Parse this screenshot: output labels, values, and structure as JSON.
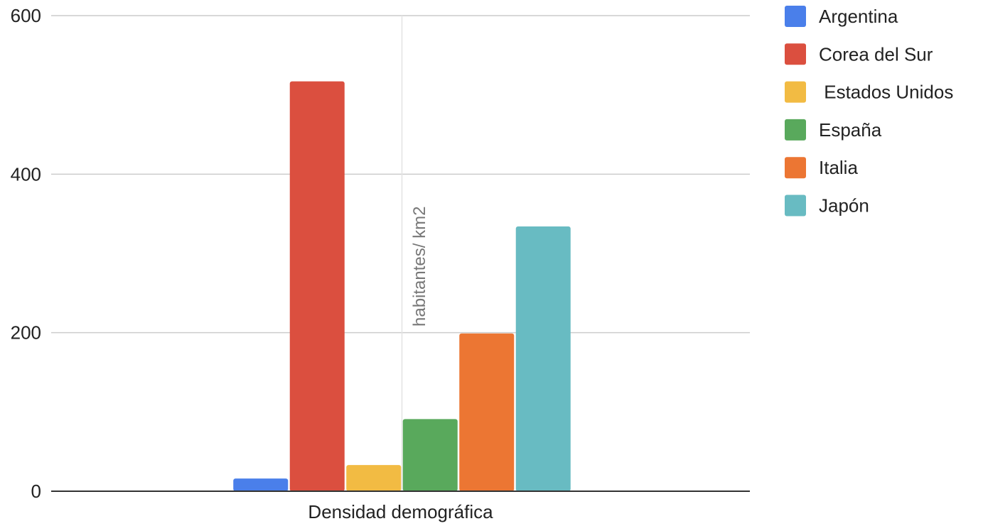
{
  "chart_data": {
    "type": "bar",
    "title": "",
    "categories": [
      "Densidad demográfica"
    ],
    "series": [
      {
        "name": "Argentina",
        "values": [
          16
        ],
        "color": "#4a7fea"
      },
      {
        "name": "Corea del Sur",
        "values": [
          517
        ],
        "color": "#db4f3f"
      },
      {
        "name": " Estados Unidos",
        "values": [
          33
        ],
        "color": "#f2bb43"
      },
      {
        "name": "España",
        "values": [
          91
        ],
        "color": "#59a95c"
      },
      {
        "name": "Italia",
        "values": [
          199
        ],
        "color": "#ec7633"
      },
      {
        "name": "Japón",
        "values": [
          334
        ],
        "color": "#68bbc2"
      }
    ],
    "xlabel": "",
    "ylabel": "habitantes/ km2",
    "ylim": [
      0,
      600
    ],
    "yticks": [
      0,
      200,
      400,
      600
    ],
    "grid": true,
    "legend_position": "right"
  }
}
